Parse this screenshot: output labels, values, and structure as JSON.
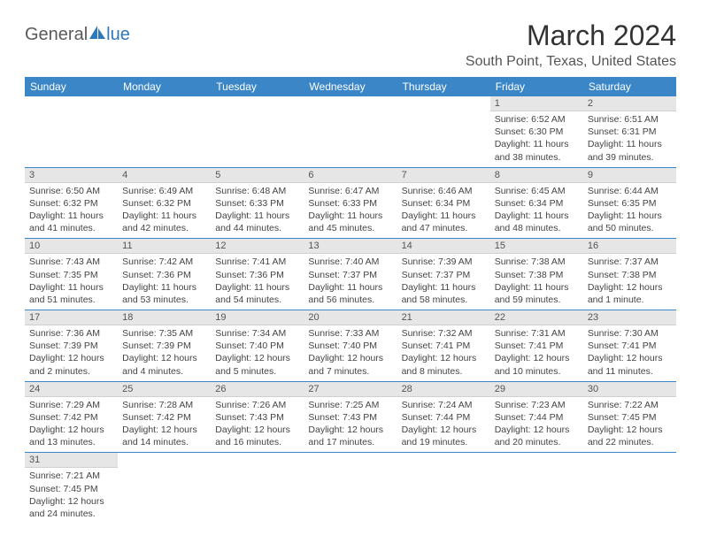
{
  "logo": {
    "general": "General",
    "blue": "lue"
  },
  "title": "March 2024",
  "location": "South Point, Texas, United States",
  "weekdays": [
    "Sunday",
    "Monday",
    "Tuesday",
    "Wednesday",
    "Thursday",
    "Friday",
    "Saturday"
  ],
  "colors": {
    "header_bg": "#3b86c6",
    "header_fg": "#ffffff",
    "daynum_bg": "#e6e6e6",
    "rule": "#3b86c6",
    "text": "#444444",
    "accent": "#2e77b8"
  },
  "grid_start_col": 5,
  "days": [
    {
      "n": "1",
      "sunrise": "Sunrise: 6:52 AM",
      "sunset": "Sunset: 6:30 PM",
      "daylight": "Daylight: 11 hours and 38 minutes."
    },
    {
      "n": "2",
      "sunrise": "Sunrise: 6:51 AM",
      "sunset": "Sunset: 6:31 PM",
      "daylight": "Daylight: 11 hours and 39 minutes."
    },
    {
      "n": "3",
      "sunrise": "Sunrise: 6:50 AM",
      "sunset": "Sunset: 6:32 PM",
      "daylight": "Daylight: 11 hours and 41 minutes."
    },
    {
      "n": "4",
      "sunrise": "Sunrise: 6:49 AM",
      "sunset": "Sunset: 6:32 PM",
      "daylight": "Daylight: 11 hours and 42 minutes."
    },
    {
      "n": "5",
      "sunrise": "Sunrise: 6:48 AM",
      "sunset": "Sunset: 6:33 PM",
      "daylight": "Daylight: 11 hours and 44 minutes."
    },
    {
      "n": "6",
      "sunrise": "Sunrise: 6:47 AM",
      "sunset": "Sunset: 6:33 PM",
      "daylight": "Daylight: 11 hours and 45 minutes."
    },
    {
      "n": "7",
      "sunrise": "Sunrise: 6:46 AM",
      "sunset": "Sunset: 6:34 PM",
      "daylight": "Daylight: 11 hours and 47 minutes."
    },
    {
      "n": "8",
      "sunrise": "Sunrise: 6:45 AM",
      "sunset": "Sunset: 6:34 PM",
      "daylight": "Daylight: 11 hours and 48 minutes."
    },
    {
      "n": "9",
      "sunrise": "Sunrise: 6:44 AM",
      "sunset": "Sunset: 6:35 PM",
      "daylight": "Daylight: 11 hours and 50 minutes."
    },
    {
      "n": "10",
      "sunrise": "Sunrise: 7:43 AM",
      "sunset": "Sunset: 7:35 PM",
      "daylight": "Daylight: 11 hours and 51 minutes."
    },
    {
      "n": "11",
      "sunrise": "Sunrise: 7:42 AM",
      "sunset": "Sunset: 7:36 PM",
      "daylight": "Daylight: 11 hours and 53 minutes."
    },
    {
      "n": "12",
      "sunrise": "Sunrise: 7:41 AM",
      "sunset": "Sunset: 7:36 PM",
      "daylight": "Daylight: 11 hours and 54 minutes."
    },
    {
      "n": "13",
      "sunrise": "Sunrise: 7:40 AM",
      "sunset": "Sunset: 7:37 PM",
      "daylight": "Daylight: 11 hours and 56 minutes."
    },
    {
      "n": "14",
      "sunrise": "Sunrise: 7:39 AM",
      "sunset": "Sunset: 7:37 PM",
      "daylight": "Daylight: 11 hours and 58 minutes."
    },
    {
      "n": "15",
      "sunrise": "Sunrise: 7:38 AM",
      "sunset": "Sunset: 7:38 PM",
      "daylight": "Daylight: 11 hours and 59 minutes."
    },
    {
      "n": "16",
      "sunrise": "Sunrise: 7:37 AM",
      "sunset": "Sunset: 7:38 PM",
      "daylight": "Daylight: 12 hours and 1 minute."
    },
    {
      "n": "17",
      "sunrise": "Sunrise: 7:36 AM",
      "sunset": "Sunset: 7:39 PM",
      "daylight": "Daylight: 12 hours and 2 minutes."
    },
    {
      "n": "18",
      "sunrise": "Sunrise: 7:35 AM",
      "sunset": "Sunset: 7:39 PM",
      "daylight": "Daylight: 12 hours and 4 minutes."
    },
    {
      "n": "19",
      "sunrise": "Sunrise: 7:34 AM",
      "sunset": "Sunset: 7:40 PM",
      "daylight": "Daylight: 12 hours and 5 minutes."
    },
    {
      "n": "20",
      "sunrise": "Sunrise: 7:33 AM",
      "sunset": "Sunset: 7:40 PM",
      "daylight": "Daylight: 12 hours and 7 minutes."
    },
    {
      "n": "21",
      "sunrise": "Sunrise: 7:32 AM",
      "sunset": "Sunset: 7:41 PM",
      "daylight": "Daylight: 12 hours and 8 minutes."
    },
    {
      "n": "22",
      "sunrise": "Sunrise: 7:31 AM",
      "sunset": "Sunset: 7:41 PM",
      "daylight": "Daylight: 12 hours and 10 minutes."
    },
    {
      "n": "23",
      "sunrise": "Sunrise: 7:30 AM",
      "sunset": "Sunset: 7:41 PM",
      "daylight": "Daylight: 12 hours and 11 minutes."
    },
    {
      "n": "24",
      "sunrise": "Sunrise: 7:29 AM",
      "sunset": "Sunset: 7:42 PM",
      "daylight": "Daylight: 12 hours and 13 minutes."
    },
    {
      "n": "25",
      "sunrise": "Sunrise: 7:28 AM",
      "sunset": "Sunset: 7:42 PM",
      "daylight": "Daylight: 12 hours and 14 minutes."
    },
    {
      "n": "26",
      "sunrise": "Sunrise: 7:26 AM",
      "sunset": "Sunset: 7:43 PM",
      "daylight": "Daylight: 12 hours and 16 minutes."
    },
    {
      "n": "27",
      "sunrise": "Sunrise: 7:25 AM",
      "sunset": "Sunset: 7:43 PM",
      "daylight": "Daylight: 12 hours and 17 minutes."
    },
    {
      "n": "28",
      "sunrise": "Sunrise: 7:24 AM",
      "sunset": "Sunset: 7:44 PM",
      "daylight": "Daylight: 12 hours and 19 minutes."
    },
    {
      "n": "29",
      "sunrise": "Sunrise: 7:23 AM",
      "sunset": "Sunset: 7:44 PM",
      "daylight": "Daylight: 12 hours and 20 minutes."
    },
    {
      "n": "30",
      "sunrise": "Sunrise: 7:22 AM",
      "sunset": "Sunset: 7:45 PM",
      "daylight": "Daylight: 12 hours and 22 minutes."
    },
    {
      "n": "31",
      "sunrise": "Sunrise: 7:21 AM",
      "sunset": "Sunset: 7:45 PM",
      "daylight": "Daylight: 12 hours and 24 minutes."
    }
  ]
}
